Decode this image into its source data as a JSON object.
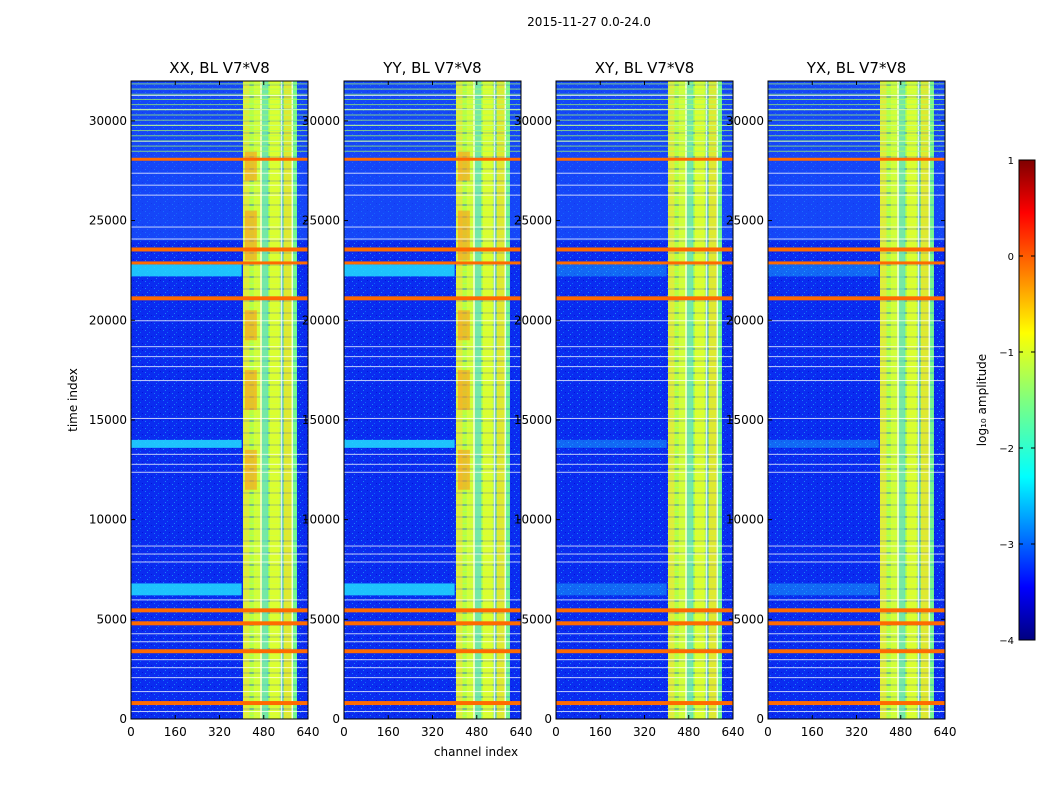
{
  "figure": {
    "suptitle": "2015-11-27 0.0-24.0"
  },
  "chart_data": {
    "type": "heatmap",
    "panels": [
      {
        "title": "XX, BL V7*V8",
        "polarization": "XX",
        "baseline": "V7*V8"
      },
      {
        "title": "YY, BL V7*V8",
        "polarization": "YY",
        "baseline": "V7*V8"
      },
      {
        "title": "XY, BL V7*V8",
        "polarization": "XY",
        "baseline": "V7*V8"
      },
      {
        "title": "YX, BL V7*V8",
        "polarization": "YX",
        "baseline": "V7*V8"
      }
    ],
    "xlabel": "channel index",
    "ylabel": "time index",
    "xlim": [
      0,
      640
    ],
    "ylim": [
      0,
      32000
    ],
    "xticks": [
      0,
      160,
      320,
      480,
      640
    ],
    "xtick_labels": [
      "0",
      "160",
      "320",
      "480",
      "640"
    ],
    "yticks": [
      0,
      5000,
      10000,
      15000,
      20000,
      25000,
      30000
    ],
    "ytick_labels": [
      "0",
      "5000",
      "10000",
      "15000",
      "20000",
      "25000",
      "30000"
    ],
    "colorbar": {
      "label": "log₁₀ amplitude",
      "range": [
        -4,
        1
      ],
      "ticks": [
        1,
        0,
        -1,
        -2,
        -3,
        -4
      ],
      "tick_labels": [
        "1",
        "0",
        "−1",
        "−2",
        "−3",
        "−4"
      ],
      "colormap": "jet"
    },
    "high_amplitude_channel_range": [
      405,
      600
    ],
    "flagged_time_bands": [
      {
        "start": 700,
        "end": 900
      },
      {
        "start": 3300,
        "end": 3500
      },
      {
        "start": 4700,
        "end": 4900
      },
      {
        "start": 5350,
        "end": 5550
      },
      {
        "start": 21000,
        "end": 21200
      },
      {
        "start": 22800,
        "end": 22950
      },
      {
        "start": 23450,
        "end": 23650
      },
      {
        "start": 28000,
        "end": 28150
      }
    ],
    "cyan_time_bands": [
      {
        "start": 6200,
        "end": 6800
      },
      {
        "start": 13600,
        "end": 14000
      },
      {
        "start": 22200,
        "end": 22800
      }
    ]
  }
}
